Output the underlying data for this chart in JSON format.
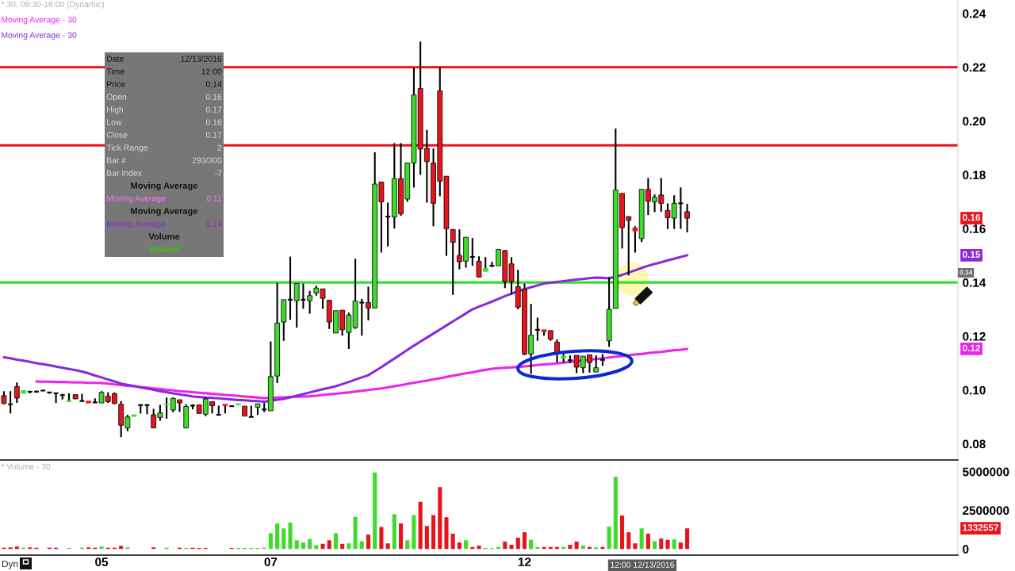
{
  "chart_data": [
    {
      "type": "candlestick",
      "title": "* 30, 09:30-16:00 (Dynamic)",
      "legend": "top left",
      "categories": [
        null,
        null,
        null,
        null,
        null,
        null,
        null,
        null,
        null,
        null,
        null,
        null,
        null,
        null,
        null,
        null,
        null,
        null,
        null,
        null,
        null,
        null,
        null,
        null,
        null,
        null,
        null,
        null,
        null,
        null,
        null,
        null,
        null,
        null,
        null,
        null,
        null,
        null,
        null,
        null,
        null,
        null,
        null,
        null,
        null,
        null,
        null,
        null,
        null,
        null,
        null,
        null,
        null,
        null,
        null,
        null,
        null,
        null,
        null,
        null,
        null,
        null,
        null,
        null,
        null,
        null,
        null,
        null,
        null,
        null,
        null,
        null,
        null,
        null,
        null,
        null,
        null,
        null,
        null,
        null,
        null,
        null,
        null,
        null,
        null,
        null,
        null,
        null,
        null,
        null,
        null,
        null,
        null,
        null,
        null,
        null,
        null,
        null,
        null,
        null,
        null,
        null,
        null,
        null,
        null,
        null,
        null,
        null,
        null,
        null,
        null,
        null,
        null,
        null,
        null,
        null,
        null,
        null,
        null,
        null,
        null,
        null,
        null,
        null,
        null,
        null,
        null,
        null,
        null,
        null,
        null,
        null,
        null,
        null,
        null,
        null,
        null,
        null,
        null,
        null,
        null,
        null,
        null,
        null,
        null,
        null,
        null
      ],
      "ohlc": [
        [
          0.0979,
          0.0996,
          0.0947,
          0.095
        ],
        [
          0.0947,
          0.0996,
          0.0913,
          0.0947
        ],
        [
          0.1013,
          0.1028,
          0.0952,
          0.097
        ],
        [
          0.0988,
          0.0998,
          0.0988,
          0.0998
        ],
        [
          0.0994,
          0.0996,
          0.0988,
          0.0994
        ],
        [
          0.0994,
          0.0998,
          0.099,
          0.0994
        ],
        [
          0.0998,
          0.0998,
          0.0998,
          0.0998
        ],
        [
          0.0991,
          0.0993,
          0.0986,
          0.0991
        ],
        [
          0.0988,
          0.099,
          0.0952,
          0.0988
        ],
        [
          0.0981,
          0.0986,
          0.0965,
          0.0981
        ],
        [
          0.0959,
          0.0988,
          0.0956,
          0.0962
        ],
        [
          0.0983,
          0.0983,
          0.0967,
          0.0967
        ],
        [
          0.0959,
          0.0986,
          0.0959,
          0.0959
        ],
        [
          0.0959,
          0.0959,
          0.0952,
          0.0952
        ],
        [
          0.0954,
          0.0969,
          0.0952,
          0.0954
        ],
        [
          0.0952,
          0.0996,
          0.0952,
          0.0991
        ],
        [
          0.0977,
          0.0991,
          0.0952,
          0.0957
        ],
        [
          0.0986,
          0.0991,
          0.0947,
          0.095
        ],
        [
          0.0947,
          0.0959,
          0.0825,
          0.0869
        ],
        [
          0.0859,
          0.0908,
          0.0847,
          0.09
        ],
        [
          0.0902,
          0.0908,
          0.0902,
          0.0908
        ],
        [
          0.0944,
          0.0947,
          0.0913,
          0.0944
        ],
        [
          0.0944,
          0.0947,
          0.091,
          0.0944
        ],
        [
          0.0908,
          0.093,
          0.0859,
          0.0859
        ],
        [
          0.0898,
          0.0945,
          0.0886,
          0.0915
        ],
        [
          0.0945,
          0.0972,
          0.0893,
          0.0947
        ],
        [
          0.0926,
          0.0972,
          0.0918,
          0.0969
        ],
        [
          0.0964,
          0.0964,
          0.0918,
          0.0952
        ],
        [
          0.0859,
          0.0947,
          0.0859,
          0.0939
        ],
        [
          0.0942,
          0.0947,
          0.0928,
          0.0942
        ],
        [
          0.0945,
          0.0945,
          0.0913,
          0.0913
        ],
        [
          0.091,
          0.0972,
          0.0903,
          0.0967
        ],
        [
          0.0957,
          0.0957,
          0.0913,
          0.0942
        ],
        [
          0.0908,
          0.0942,
          0.0908,
          0.0908
        ],
        [
          0.0947,
          0.0947,
          0.0913,
          0.0942
        ],
        [
          0.094,
          0.0942,
          0.0938,
          0.094
        ],
        [
          0.0945,
          0.0949,
          0.0945,
          0.0949
        ],
        [
          0.094,
          0.094,
          0.0903,
          0.0903
        ],
        [
          0.09,
          0.0942,
          0.09,
          0.09
        ],
        [
          0.0936,
          0.0949,
          0.0908,
          0.0949
        ],
        [
          0.0928,
          0.0952,
          0.0918,
          0.0928
        ],
        [
          0.0923,
          0.1181,
          0.0923,
          0.105
        ],
        [
          0.1052,
          0.1398,
          0.1026,
          0.1249
        ],
        [
          0.1253,
          0.1336,
          0.1183,
          0.1336
        ],
        [
          0.1336,
          0.1496,
          0.1261,
          0.1336
        ],
        [
          0.1332,
          0.1396,
          0.1232,
          0.1396
        ],
        [
          0.1336,
          0.1396,
          0.1302,
          0.1336
        ],
        [
          0.1332,
          0.1369,
          0.1284,
          0.1351
        ],
        [
          0.1361,
          0.1388,
          0.1351,
          0.1379
        ],
        [
          0.1376,
          0.1376,
          0.1302,
          0.1341
        ],
        [
          0.1334,
          0.1334,
          0.1227,
          0.1253
        ],
        [
          0.1212,
          0.1295,
          0.1212,
          0.1295
        ],
        [
          0.1297,
          0.1297,
          0.1202,
          0.1224
        ],
        [
          0.1214,
          0.1288,
          0.1153,
          0.1279
        ],
        [
          0.1232,
          0.1488,
          0.1227,
          0.1331
        ],
        [
          0.1325,
          0.1339,
          0.1202,
          0.1325
        ],
        [
          0.1325,
          0.1384,
          0.1259,
          0.1305
        ],
        [
          0.1305,
          0.1884,
          0.1305,
          0.1766
        ],
        [
          0.1773,
          0.1773,
          0.1511,
          0.17
        ],
        [
          0.1645,
          0.1697,
          0.1534,
          0.1645
        ],
        [
          0.1643,
          0.1918,
          0.16,
          0.1786
        ],
        [
          0.1786,
          0.1918,
          0.1648,
          0.1655
        ],
        [
          0.171,
          0.1844,
          0.17,
          0.1844
        ],
        [
          0.1844,
          0.2197,
          0.1753,
          0.2097
        ],
        [
          0.2121,
          0.2295,
          0.18,
          0.1896
        ],
        [
          0.1898,
          0.1967,
          0.1697,
          0.1849
        ],
        [
          0.1844,
          0.1898,
          0.1609,
          0.1694
        ],
        [
          0.2112,
          0.22,
          0.172,
          0.1776
        ],
        [
          0.1795,
          0.1795,
          0.1499,
          0.16
        ],
        [
          0.1597,
          0.1597,
          0.1354,
          0.1549
        ],
        [
          0.15,
          0.1597,
          0.1449,
          0.1477
        ],
        [
          0.1479,
          0.1568,
          0.1455,
          0.1568
        ],
        [
          0.1495,
          0.1565,
          0.1462,
          0.1495
        ],
        [
          0.1479,
          0.1497,
          0.142,
          0.142
        ],
        [
          0.1441,
          0.1494,
          0.1441,
          0.1452
        ],
        [
          0.1462,
          0.1477,
          0.1457,
          0.1462
        ],
        [
          0.1462,
          0.1523,
          0.1462,
          0.1523
        ],
        [
          0.1519,
          0.1519,
          0.1379,
          0.1403
        ],
        [
          0.1469,
          0.1494,
          0.1355,
          0.1403
        ],
        [
          0.1384,
          0.1447,
          0.13,
          0.1308
        ],
        [
          0.1374,
          0.1396,
          0.1129,
          0.1134
        ],
        [
          0.1134,
          0.132,
          0.106,
          0.1204
        ],
        [
          0.1224,
          0.1269,
          0.1183,
          0.1224
        ],
        [
          0.1224,
          0.1224,
          0.1202,
          0.1217
        ],
        [
          0.1221,
          0.1221,
          0.1183,
          0.1189
        ],
        [
          0.1178,
          0.1188,
          0.1102,
          0.1139
        ],
        [
          0.1119,
          0.1139,
          0.1102,
          0.1126
        ],
        [
          0.1111,
          0.1129,
          0.11,
          0.1111
        ],
        [
          0.1129,
          0.1129,
          0.1063,
          0.1085
        ],
        [
          0.1083,
          0.1126,
          0.1063,
          0.1126
        ],
        [
          0.1131,
          0.1131,
          0.1065,
          0.1102
        ],
        [
          0.1067,
          0.1129,
          0.1067,
          0.1083
        ],
        [
          0.1112,
          0.1134,
          0.109,
          0.1112
        ],
        [
          0.1183,
          0.142,
          0.1161,
          0.13
        ],
        [
          0.1303,
          0.1972,
          0.1303,
          0.1743
        ],
        [
          0.1731,
          0.1731,
          0.1526,
          0.1604
        ],
        [
          0.1645,
          0.1645,
          0.1426,
          0.1631
        ],
        [
          0.1602,
          0.1609,
          0.1511,
          0.1591
        ],
        [
          0.1563,
          0.1746,
          0.155,
          0.1746
        ],
        [
          0.1746,
          0.1788,
          0.1651,
          0.1702
        ],
        [
          0.17,
          0.1727,
          0.1661,
          0.1717
        ],
        [
          0.1725,
          0.1788,
          0.1663,
          0.1694
        ],
        [
          0.1668,
          0.1694,
          0.1599,
          0.1641
        ],
        [
          0.1639,
          0.1724,
          0.1599,
          0.1694
        ],
        [
          0.1694,
          0.1753,
          0.1599,
          0.1694
        ],
        [
          0.1663,
          0.1692,
          0.1586,
          0.1639
        ],
        null,
        null,
        null,
        null,
        null,
        null,
        null,
        null,
        null,
        null,
        null,
        null,
        null,
        null,
        null,
        null,
        null,
        null,
        null,
        null,
        null,
        null,
        null,
        null,
        null,
        null,
        null,
        null,
        null,
        null,
        null,
        null,
        null,
        null,
        null,
        null,
        null,
        null,
        null,
        null,
        null
      ],
      "value_labels": [
        null,
        null,
        null,
        null,
        null,
        null,
        null,
        null,
        null,
        null,
        null,
        null,
        null,
        null,
        null,
        null,
        null,
        null,
        null,
        null,
        null,
        null,
        null,
        null,
        null,
        null,
        null,
        null,
        null,
        null,
        null,
        null,
        null,
        null,
        null,
        null,
        null,
        null,
        null,
        null,
        null,
        null,
        null,
        null,
        null,
        null,
        null,
        null,
        null,
        null,
        null,
        null,
        null,
        null,
        null,
        null,
        null,
        null,
        null,
        null,
        null,
        null,
        null,
        null,
        null,
        null,
        null,
        null,
        null,
        null,
        null,
        null,
        null,
        null,
        null,
        null,
        null,
        null,
        null,
        null,
        null,
        null,
        null,
        null,
        null,
        null,
        null,
        null,
        null,
        null,
        null,
        null,
        null,
        null,
        null,
        null,
        null,
        null,
        null,
        null,
        null,
        null,
        null,
        null,
        null,
        "0.16",
        null,
        null,
        null,
        null,
        null,
        null,
        null,
        null,
        null,
        null,
        null,
        null,
        null,
        null,
        null,
        null,
        null,
        null,
        null,
        null,
        null,
        null,
        null,
        null,
        null,
        null,
        null,
        null,
        null,
        null,
        null,
        null,
        null,
        null,
        null,
        null,
        null,
        null,
        null,
        null,
        null
      ],
      "colors": [
        "#e8141c",
        "#000000",
        "#e8141c",
        "#3ddc2a",
        "#000000",
        "#000000",
        "#000000",
        "#000000",
        "#000000",
        "#000000",
        "#3ddc2a",
        "#e8141c",
        "#000000",
        "#e8141c",
        "#000000",
        "#3ddc2a",
        "#e8141c",
        "#e8141c",
        "#e8141c",
        "#3ddc2a",
        "#3ddc2a",
        "#000000",
        "#000000",
        "#e8141c",
        "#3ddc2a",
        "#3ddc2a",
        "#3ddc2a",
        "#e8141c",
        "#3ddc2a",
        "#000000",
        "#e8141c",
        "#3ddc2a",
        "#e8141c",
        "#000000",
        "#e8141c",
        "#000000",
        "#3ddc2a",
        "#e8141c",
        "#000000",
        "#3ddc2a",
        "#000000",
        "#3ddc2a",
        "#3ddc2a",
        "#3ddc2a",
        "#000000",
        "#3ddc2a",
        "#000000",
        "#3ddc2a",
        "#3ddc2a",
        "#e8141c",
        "#e8141c",
        "#3ddc2a",
        "#e8141c",
        "#3ddc2a",
        "#3ddc2a",
        "#000000",
        "#e8141c",
        "#3ddc2a",
        "#e8141c",
        "#000000",
        "#3ddc2a",
        "#e8141c",
        "#3ddc2a",
        "#3ddc2a",
        "#e8141c",
        "#e8141c",
        "#e8141c",
        "#e8141c",
        "#e8141c",
        "#e8141c",
        "#e8141c",
        "#3ddc2a",
        "#000000",
        "#e8141c",
        "#3ddc2a",
        "#000000",
        "#3ddc2a",
        "#e8141c",
        "#e8141c",
        "#e8141c",
        "#e8141c",
        "#3ddc2a",
        "#000000",
        "#e8141c",
        "#e8141c",
        "#e8141c",
        "#3ddc2a",
        "#000000",
        "#e8141c",
        "#3ddc2a",
        "#e8141c",
        "#3ddc2a",
        "#000000",
        "#3ddc2a",
        "#3ddc2a",
        "#e8141c",
        "#e8141c",
        "#e8141c",
        "#3ddc2a",
        "#e8141c",
        "#3ddc2a",
        "#e8141c",
        "#e8141c",
        "#3ddc2a",
        "#000000",
        "#e8141c",
        null,
        null,
        null,
        null,
        null,
        null,
        null,
        null,
        null,
        null,
        null,
        null,
        null,
        null,
        null,
        null,
        null,
        null,
        null,
        null,
        null,
        null,
        null,
        null,
        null,
        null,
        null,
        null,
        null,
        null,
        null,
        null,
        null,
        null,
        null,
        null,
        null,
        null,
        null,
        null,
        null
      ],
      "series": [
        {
          "type": "line",
          "name": "Moving Average - 30",
          "color": "#ee22ee",
          "values": [
            null,
            null,
            null,
            null,
            null,
            0.1032,
            0.1031,
            0.1031,
            0.103,
            0.103,
            0.1029,
            0.1028,
            0.1028,
            0.1027,
            0.1027,
            0.1026,
            0.1024,
            0.1021,
            0.1019,
            0.1016,
            0.1014,
            0.1011,
            0.1009,
            0.1006,
            0.1004,
            0.1001,
            0.0999,
            0.0996,
            0.0994,
            0.0992,
            0.099,
            0.0988,
            0.0986,
            0.0984,
            0.0982,
            0.098,
            0.0978,
            0.0976,
            0.0974,
            0.0972,
            0.097,
            0.0971,
            0.0972,
            0.0973,
            0.0974,
            0.0975,
            0.0976,
            0.0977,
            0.0979,
            0.0982,
            0.0984,
            0.0986,
            0.0989,
            0.0991,
            0.0994,
            0.0997,
            0.1,
            0.1003,
            0.1006,
            0.101,
            0.1014,
            0.1018,
            0.1023,
            0.1027,
            0.1031,
            0.1035,
            0.104,
            0.1044,
            0.1049,
            0.1053,
            0.1058,
            0.1062,
            0.1066,
            0.1071,
            0.1075,
            0.1079,
            0.1081,
            0.1083,
            0.1084,
            0.1086,
            0.1088,
            0.109,
            0.1093,
            0.1095,
            0.1097,
            0.1099,
            0.1102,
            0.1104,
            0.1107,
            0.111,
            0.1113,
            0.1115,
            0.1118,
            0.1121,
            0.1124,
            0.1126,
            0.1129,
            0.1132,
            0.1134,
            0.1137,
            0.114,
            0.1142,
            0.1145,
            0.1148,
            0.115,
            0.1153,
            null,
            null,
            null,
            null,
            null,
            null,
            null,
            null,
            null,
            null,
            null,
            null,
            null,
            null,
            null,
            null,
            null,
            null,
            null,
            null,
            null,
            null,
            null,
            null,
            null,
            null,
            null,
            null,
            null,
            null,
            null,
            null,
            null,
            null,
            null,
            null,
            null,
            null,
            null,
            null,
            null
          ]
        },
        {
          "type": "line",
          "name": "Moving Average - 30",
          "color": "#8c28dc",
          "values": [
            0.1122,
            0.1118,
            0.1113,
            0.1109,
            0.1105,
            0.11,
            0.1096,
            0.1092,
            0.1087,
            0.1083,
            0.1078,
            0.1074,
            0.1069,
            0.1062,
            0.1054,
            0.1047,
            0.1039,
            0.1032,
            0.1024,
            0.1019,
            0.1015,
            0.101,
            0.1005,
            0.1001,
            0.0996,
            0.0992,
            0.0988,
            0.0984,
            0.098,
            0.0976,
            0.0974,
            0.0972,
            0.0971,
            0.0969,
            0.0967,
            0.0965,
            0.0963,
            0.0962,
            0.096,
            0.0959,
            0.0957,
            0.096,
            0.0964,
            0.0967,
            0.0973,
            0.0979,
            0.0985,
            0.0991,
            0.0997,
            0.1003,
            0.1008,
            0.1014,
            0.1022,
            0.103,
            0.1039,
            0.1047,
            0.1055,
            0.107,
            0.1085,
            0.1101,
            0.1117,
            0.1133,
            0.1149,
            0.1165,
            0.118,
            0.1195,
            0.121,
            0.1225,
            0.124,
            0.1255,
            0.127,
            0.1285,
            0.13,
            0.131,
            0.1319,
            0.1329,
            0.1339,
            0.1349,
            0.1358,
            0.1368,
            0.1375,
            0.1382,
            0.1389,
            0.1396,
            0.1399,
            0.1402,
            0.1405,
            0.1408,
            0.1411,
            0.1413,
            0.1416,
            0.1418,
            0.1417,
            0.1415,
            0.1422,
            0.1428,
            0.1437,
            0.1445,
            0.1454,
            0.1462,
            0.1469,
            0.1475,
            0.1482,
            0.1488,
            0.1495,
            0.1501,
            null,
            null,
            null,
            null,
            null,
            null,
            null,
            null,
            null,
            null,
            null,
            null,
            null,
            null,
            null,
            null,
            null,
            null,
            null,
            null,
            null,
            null,
            null,
            null,
            null,
            null,
            null,
            null,
            null,
            null,
            null,
            null,
            null,
            null,
            null,
            null,
            null,
            null,
            null,
            null,
            null
          ]
        }
      ],
      "ref_lines": [
        {
          "axis": "y",
          "value": 0.22,
          "label": null,
          "color": "#e8141c"
        },
        {
          "axis": "y",
          "value": 0.191,
          "label": null,
          "color": "#e8141c"
        },
        {
          "axis": "y",
          "value": 0.14,
          "label": null,
          "color": "#33e033"
        }
      ],
      "annotations": [
        "0.12",
        "0.15",
        "0.14"
      ],
      "ylim": [
        0.074,
        0.245
      ],
      "yticks": [
        0.08,
        {
          "value": 0.1,
          "label": "0.10"
        },
        0.12,
        0.14,
        0.16,
        0.18,
        {
          "value": 0.2,
          "label": "0.20"
        },
        0.22,
        0.24
      ]
    },
    {
      "type": "bar",
      "title": "* Volume - 30",
      "categories": [
        null,
        null,
        null,
        null,
        null,
        null,
        null,
        null,
        null,
        null,
        null,
        null,
        null,
        null,
        null,
        "05",
        null,
        null,
        null,
        null,
        null,
        null,
        null,
        null,
        null,
        null,
        null,
        null,
        null,
        null,
        null,
        null,
        null,
        null,
        null,
        null,
        null,
        null,
        null,
        null,
        null,
        "07",
        null,
        null,
        null,
        null,
        null,
        null,
        null,
        null,
        null,
        null,
        null,
        null,
        null,
        null,
        null,
        null,
        null,
        null,
        null,
        null,
        null,
        null,
        null,
        null,
        null,
        null,
        null,
        null,
        null,
        null,
        null,
        null,
        null,
        null,
        null,
        null,
        null,
        null,
        "12",
        null,
        null,
        null,
        null,
        null,
        null,
        null,
        null,
        null,
        null,
        null,
        null,
        null,
        null,
        null,
        null,
        null,
        null,
        null,
        null,
        null,
        null,
        null,
        null,
        null,
        null,
        null,
        null,
        null,
        null,
        null,
        null,
        null,
        null,
        null,
        null,
        null,
        null,
        null,
        null,
        null,
        null,
        null,
        null,
        null,
        null,
        null,
        null,
        null,
        null,
        null,
        null,
        null,
        null,
        null,
        null,
        null,
        null,
        null,
        null,
        null,
        null,
        null,
        null,
        null,
        null
      ],
      "values": [
        80000,
        100000,
        160000,
        80000,
        100000,
        80000,
        null,
        80000,
        80000,
        null,
        60000,
        null,
        80000,
        100000,
        80000,
        160000,
        80000,
        80000,
        200000,
        100000,
        null,
        null,
        null,
        100000,
        null,
        80000,
        null,
        80000,
        60000,
        80000,
        60000,
        60000,
        null,
        null,
        null,
        60000,
        60000,
        60000,
        60000,
        60000,
        80000,
        1020000,
        1650000,
        1330000,
        1710000,
        560000,
        420000,
        650000,
        250000,
        330000,
        560000,
        1020000,
        330000,
        360000,
        2080000,
        500000,
        930000,
        4940000,
        1420000,
        360000,
        2250000,
        1650000,
        560000,
        2190000,
        3050000,
        1480000,
        2190000,
        4000000,
        2050000,
        990000,
        420000,
        560000,
        130000,
        220000,
        70000,
        50000,
        130000,
        480000,
        270000,
        730000,
        1080000,
        590000,
        130000,
        130000,
        130000,
        130000,
        130000,
        270000,
        480000,
        220000,
        130000,
        100000,
        130000,
        1450000,
        4660000,
        2160000,
        1080000,
        360000,
        1330000,
        990000,
        500000,
        680000,
        590000,
        620000,
        420000,
        1332557,
        null,
        null,
        null,
        null,
        null,
        null,
        null,
        null,
        null,
        null,
        null,
        null,
        null,
        null,
        null,
        null,
        null,
        null,
        null,
        null,
        null,
        null,
        null,
        null,
        null,
        null,
        null,
        null,
        null,
        null,
        null,
        null,
        null,
        null,
        null,
        null,
        null,
        null,
        null,
        null,
        null
      ],
      "colors": [
        "#e8141c",
        "#e8141c",
        "#e8141c",
        "#3ddc2a",
        "#e8141c",
        "#e8141c",
        null,
        "#e8141c",
        "#e8141c",
        null,
        "#3ddc2a",
        null,
        "#3ddc2a",
        "#e8141c",
        "#e8141c",
        "#3ddc2a",
        "#e8141c",
        "#e8141c",
        "#e8141c",
        "#3ddc2a",
        null,
        null,
        null,
        "#e8141c",
        null,
        "#3ddc2a",
        null,
        "#e8141c",
        "#3ddc2a",
        "#e8141c",
        "#e8141c",
        "#e8141c",
        null,
        null,
        null,
        "#e8141c",
        "#3ddc2a",
        "#3ddc2a",
        "#3ddc2a",
        "#3ddc2a",
        "#3ddc2a",
        "#3ddc2a",
        "#3ddc2a",
        "#3ddc2a",
        "#3ddc2a",
        "#3ddc2a",
        "#3ddc2a",
        "#3ddc2a",
        "#3ddc2a",
        "#e8141c",
        "#e8141c",
        "#3ddc2a",
        "#e8141c",
        "#3ddc2a",
        "#3ddc2a",
        "#3ddc2a",
        "#e8141c",
        "#3ddc2a",
        "#e8141c",
        "#e8141c",
        "#3ddc2a",
        "#e8141c",
        "#3ddc2a",
        "#3ddc2a",
        "#e8141c",
        "#e8141c",
        "#e8141c",
        "#e8141c",
        "#e8141c",
        "#e8141c",
        "#e8141c",
        "#3ddc2a",
        "#e8141c",
        "#e8141c",
        "#3ddc2a",
        "#3ddc2a",
        "#3ddc2a",
        "#e8141c",
        "#e8141c",
        "#e8141c",
        "#e8141c",
        "#3ddc2a",
        "#3ddc2a",
        "#e8141c",
        "#e8141c",
        "#e8141c",
        "#3ddc2a",
        "#e8141c",
        "#e8141c",
        "#3ddc2a",
        "#e8141c",
        "#3ddc2a",
        "#e8141c",
        "#3ddc2a",
        "#3ddc2a",
        "#e8141c",
        "#e8141c",
        "#e8141c",
        "#3ddc2a",
        "#e8141c",
        "#3ddc2a",
        "#e8141c",
        "#e8141c",
        "#3ddc2a",
        "#e8141c",
        "#e8141c",
        null,
        null,
        null,
        null,
        null,
        null,
        null,
        null,
        null,
        null,
        null,
        null,
        null,
        null,
        null,
        null,
        null,
        null,
        null,
        null,
        null,
        null,
        null,
        null,
        null,
        null,
        null,
        null,
        null,
        null,
        null,
        null,
        null,
        null,
        null,
        null,
        null,
        null,
        null,
        null,
        null
      ],
      "annotations": [
        "1332557",
        "12:00 12/13/2016",
        "Dyn"
      ],
      "ylim": [
        -400000,
        5600000
      ],
      "yticks": [
        0,
        2500000,
        5000000
      ]
    },
    {
      "type": "other",
      "annotations": [
        "Date\t12/13/2016",
        "Time\t12:00",
        "Price\t0.14",
        "Open\t0.16",
        "High\t0.17",
        "Low\t0.16",
        "Close\t0.17",
        "Tick Range\t2",
        "Bar #\t293/300",
        "Bar Index\t-7",
        "Moving Average",
        "Moving Average\t0.11",
        "Moving Average",
        "Moving Average\t0.14",
        "Volume",
        "Volume"
      ],
      "colors": [
        "#141414",
        "#141414",
        "#141414",
        "#d8d8d8",
        "#d8d8d8",
        "#d8d8d8",
        "#d8d8d8",
        "#d8d8d8",
        "#d8d8d8",
        "#d8d8d8",
        "#141414",
        "#ff70ff",
        "#141414",
        "#8c28dc",
        "#141414",
        "#33cc00"
      ]
    }
  ]
}
